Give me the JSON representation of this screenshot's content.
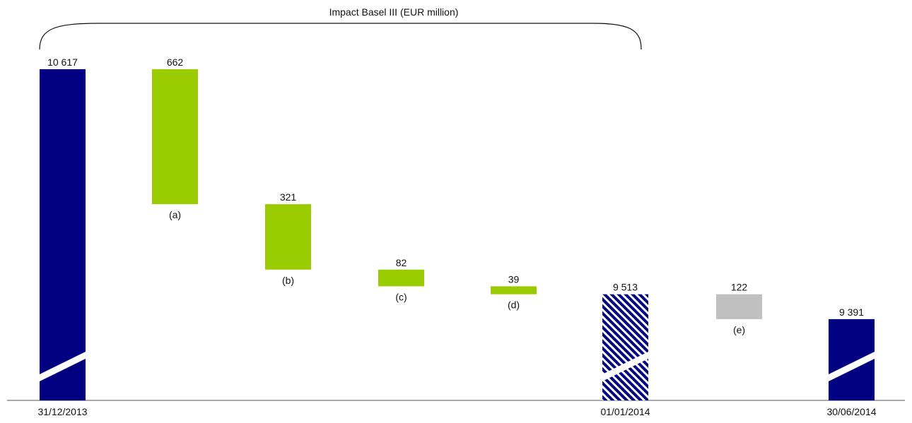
{
  "chart_data": {
    "type": "bar",
    "subtype": "waterfall",
    "title": "Impact Basel III",
    "title_unit": "(EUR million)",
    "bracket_spans": [
      "10 617",
      "9 513"
    ],
    "ylim": [
      8950,
      10700
    ],
    "axis_break": true,
    "bars": [
      {
        "kind": "total",
        "style": "solid",
        "category": "31/12/2013",
        "value": 10617,
        "label": "10 617",
        "note": ""
      },
      {
        "kind": "decrease",
        "style": "green",
        "category": "",
        "value": 662,
        "from": 10617,
        "to": 9955,
        "label": "662",
        "note": "(a)"
      },
      {
        "kind": "decrease",
        "style": "green",
        "category": "",
        "value": 321,
        "from": 9955,
        "to": 9634,
        "label": "321",
        "note": "(b)"
      },
      {
        "kind": "decrease",
        "style": "green",
        "category": "",
        "value": 82,
        "from": 9634,
        "to": 9552,
        "label": "82",
        "note": "(c)"
      },
      {
        "kind": "decrease",
        "style": "green",
        "category": "",
        "value": 39,
        "from": 9552,
        "to": 9513,
        "label": "39",
        "note": "(d)"
      },
      {
        "kind": "total",
        "style": "hatched",
        "category": "01/01/2014",
        "value": 9513,
        "label": "9 513",
        "note": ""
      },
      {
        "kind": "decrease",
        "style": "grey",
        "category": "",
        "value": 122,
        "from": 9513,
        "to": 9391,
        "label": "122",
        "note": "(e)"
      },
      {
        "kind": "total",
        "style": "solid",
        "category": "30/06/2014",
        "value": 9391,
        "label": "9 391",
        "note": ""
      }
    ],
    "colors": {
      "total": "#000080",
      "green": "#99cc00",
      "grey": "#c0c0c0",
      "axis": "#555555"
    },
    "grid": false,
    "legend": "none"
  }
}
